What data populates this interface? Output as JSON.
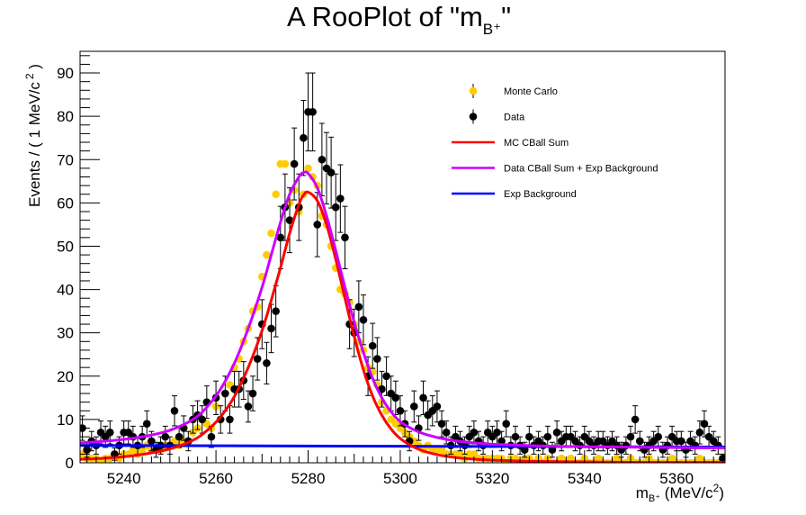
{
  "chart_data": {
    "type": "scatter",
    "title": "A RooPlot of \"m",
    "title_subscript": "B⁺",
    "title_suffix": "\"",
    "xlabel": "m",
    "xlabel_subscript": "B⁺",
    "xlabel_suffix": " (MeV/c",
    "xlabel_sup": "2",
    "xlabel_end": ")",
    "ylabel": "Events / ( 1 MeV/c",
    "ylabel_sup": "2",
    "ylabel_end": " )",
    "xlim": [
      5230.5,
      5370.5
    ],
    "ylim": [
      0,
      95
    ],
    "x_ticks": [
      5240,
      5260,
      5280,
      5300,
      5320,
      5340,
      5360
    ],
    "x_tick_labels": [
      "5240",
      "5260",
      "5280",
      "5300",
      "5320",
      "5340",
      "5360"
    ],
    "y_ticks": [
      0,
      10,
      20,
      30,
      40,
      50,
      60,
      70,
      80,
      90
    ],
    "y_tick_labels": [
      "0",
      "10",
      "20",
      "30",
      "40",
      "50",
      "60",
      "70",
      "80",
      "90"
    ],
    "grid": false,
    "legend_position": "top-right",
    "legend": [
      {
        "label": "Monte Carlo",
        "kind": "marker",
        "color": "#ffcc00"
      },
      {
        "label": "Data",
        "kind": "marker",
        "color": "#000000"
      },
      {
        "label": "MC CBall Sum",
        "kind": "line",
        "color": "#ff0000"
      },
      {
        "label": "Data CBall Sum + Exp Background",
        "kind": "line",
        "color": "#cc00ff"
      },
      {
        "label": "Exp Background",
        "kind": "line",
        "color": "#0000ff"
      }
    ],
    "series": [
      {
        "name": "Monte Carlo",
        "kind": "points",
        "color": "#ffcc00",
        "x": [
          5231,
          5232,
          5233,
          5234,
          5235,
          5236,
          5237,
          5238,
          5239,
          5240,
          5241,
          5242,
          5243,
          5244,
          5245,
          5246,
          5247,
          5248,
          5249,
          5250,
          5251,
          5252,
          5253,
          5254,
          5255,
          5256,
          5257,
          5258,
          5259,
          5260,
          5261,
          5262,
          5263,
          5264,
          5265,
          5266,
          5267,
          5268,
          5269,
          5270,
          5271,
          5272,
          5273,
          5274,
          5275,
          5276,
          5277,
          5278,
          5279,
          5280,
          5281,
          5282,
          5283,
          5284,
          5285,
          5286,
          5287,
          5288,
          5289,
          5290,
          5291,
          5292,
          5293,
          5294,
          5295,
          5296,
          5297,
          5298,
          5299,
          5300,
          5301,
          5302,
          5303,
          5304,
          5305,
          5306,
          5307,
          5308,
          5309,
          5310,
          5311,
          5312,
          5313,
          5314,
          5315,
          5316,
          5317,
          5318,
          5319,
          5320,
          5321,
          5322,
          5323,
          5324,
          5325,
          5326,
          5327,
          5328,
          5329,
          5330,
          5331,
          5332,
          5333,
          5334,
          5335,
          5336,
          5337,
          5338,
          5339,
          5340,
          5341,
          5342,
          5343,
          5344,
          5345,
          5346,
          5347,
          5348,
          5349,
          5350,
          5351,
          5352,
          5353,
          5354,
          5355,
          5356,
          5357,
          5358,
          5359,
          5360,
          5361,
          5362,
          5363,
          5364,
          5365,
          5366,
          5367,
          5368,
          5369,
          5370
        ],
        "y": [
          2,
          1,
          1,
          1,
          0,
          1,
          1,
          2,
          1,
          2,
          2,
          3,
          2,
          3,
          4,
          3,
          3,
          3,
          4,
          4,
          5,
          4,
          5,
          5,
          7,
          8,
          10,
          9,
          8,
          13,
          10,
          16,
          18,
          22,
          24,
          28,
          31,
          35,
          36,
          43,
          48,
          53,
          62,
          69,
          69,
          60,
          63,
          58,
          62,
          68,
          66,
          64,
          57,
          55,
          50,
          45,
          40,
          39,
          37,
          32,
          28,
          26,
          22,
          21,
          18,
          14,
          12,
          10,
          9,
          8,
          7,
          6,
          5,
          4,
          3,
          4,
          3,
          3,
          3,
          2,
          2,
          2,
          2,
          1,
          2,
          2,
          1,
          1,
          1,
          1,
          1,
          1,
          0,
          1,
          1,
          0,
          1,
          1,
          0,
          1,
          0,
          1,
          0,
          0,
          1,
          0,
          1,
          0,
          0,
          1,
          0,
          0,
          1,
          0,
          0,
          0,
          1,
          0,
          0,
          1,
          0,
          0,
          0,
          1,
          0,
          0,
          0,
          0,
          1,
          0,
          0,
          0,
          0,
          0,
          1,
          0,
          0,
          0,
          0,
          0
        ]
      },
      {
        "name": "Data",
        "kind": "points_with_errors",
        "color": "#000000",
        "x": [
          5231,
          5232,
          5233,
          5234,
          5235,
          5236,
          5237,
          5238,
          5239,
          5240,
          5241,
          5242,
          5243,
          5244,
          5245,
          5246,
          5247,
          5248,
          5249,
          5250,
          5251,
          5252,
          5253,
          5254,
          5255,
          5256,
          5257,
          5258,
          5259,
          5260,
          5261,
          5262,
          5263,
          5264,
          5265,
          5266,
          5267,
          5268,
          5269,
          5270,
          5271,
          5272,
          5273,
          5274,
          5275,
          5276,
          5277,
          5278,
          5279,
          5280,
          5281,
          5282,
          5283,
          5284,
          5285,
          5286,
          5287,
          5288,
          5289,
          5290,
          5291,
          5292,
          5293,
          5294,
          5295,
          5296,
          5297,
          5298,
          5299,
          5300,
          5301,
          5302,
          5303,
          5304,
          5305,
          5306,
          5307,
          5308,
          5309,
          5310,
          5311,
          5312,
          5313,
          5314,
          5315,
          5316,
          5317,
          5318,
          5319,
          5320,
          5321,
          5322,
          5323,
          5324,
          5325,
          5326,
          5327,
          5328,
          5329,
          5330,
          5331,
          5332,
          5333,
          5334,
          5335,
          5336,
          5337,
          5338,
          5339,
          5340,
          5341,
          5342,
          5343,
          5344,
          5345,
          5346,
          5347,
          5348,
          5349,
          5350,
          5351,
          5352,
          5353,
          5354,
          5355,
          5356,
          5357,
          5358,
          5359,
          5360,
          5361,
          5362,
          5363,
          5364,
          5365,
          5366,
          5367,
          5368,
          5369,
          5370
        ],
        "y": [
          8,
          3,
          5,
          4,
          7,
          6,
          7,
          2,
          4,
          7,
          7,
          6,
          4,
          6,
          9,
          5,
          3,
          4,
          6,
          4,
          12,
          6,
          8,
          5,
          10,
          11,
          10,
          14,
          6,
          15,
          10,
          16,
          10,
          17,
          17,
          19,
          13,
          16,
          24,
          32,
          23,
          31,
          35,
          52,
          59,
          56,
          69,
          59,
          75,
          81,
          81,
          55,
          70,
          68,
          67,
          59,
          61,
          52,
          32,
          30,
          36,
          33,
          20,
          27,
          24,
          17,
          20,
          16,
          15,
          12,
          9,
          5,
          13,
          8,
          15,
          11,
          12,
          13,
          9,
          7,
          4,
          6,
          5,
          4,
          6,
          7,
          5,
          4,
          7,
          6,
          7,
          5,
          9,
          4,
          6,
          4,
          3,
          6,
          4,
          5,
          4,
          6,
          3,
          7,
          5,
          6,
          6,
          5,
          4,
          6,
          5,
          4,
          5,
          5,
          4,
          5,
          4,
          3,
          4,
          6,
          10,
          5,
          3,
          4,
          5,
          6,
          3,
          4,
          6,
          5,
          5,
          3,
          5,
          4,
          7,
          9,
          6,
          5,
          4,
          1
        ]
      },
      {
        "name": "MC CBall Sum",
        "kind": "curve",
        "color": "#ff0000",
        "x": [
          5230.5,
          5235,
          5240,
          5245,
          5250,
          5255,
          5258,
          5261,
          5264,
          5267,
          5270,
          5272,
          5274,
          5276,
          5278,
          5279,
          5280,
          5282,
          5284,
          5286,
          5288,
          5290,
          5292,
          5294,
          5296,
          5298,
          5300,
          5303,
          5306,
          5310,
          5315,
          5320,
          5330,
          5340,
          5350,
          5360,
          5370.5
        ],
        "y": [
          0.8,
          1.0,
          1.4,
          2.1,
          3.2,
          5.2,
          7.4,
          10.6,
          15.3,
          22,
          30.5,
          37.5,
          45,
          53,
          59.6,
          61.8,
          62.5,
          60.5,
          55,
          47,
          38,
          29.2,
          21.5,
          15.4,
          11,
          7.8,
          5.6,
          3.6,
          2.4,
          1.5,
          0.9,
          0.6,
          0.3,
          0.2,
          0.1,
          0.1,
          0.1
        ]
      },
      {
        "name": "Data CBall Sum + Exp Background",
        "kind": "curve",
        "color": "#cc00ff",
        "x": [
          5230.5,
          5235,
          5240,
          5245,
          5250,
          5255,
          5258,
          5261,
          5264,
          5267,
          5270,
          5272,
          5274,
          5276,
          5278,
          5279,
          5280,
          5282,
          5284,
          5286,
          5288,
          5290,
          5292,
          5294,
          5296,
          5298,
          5300,
          5303,
          5306,
          5310,
          5315,
          5320,
          5330,
          5340,
          5350,
          5360,
          5370.5
        ],
        "y": [
          4.6,
          4.9,
          5.4,
          6.2,
          7.5,
          10,
          12.8,
          17,
          23,
          31,
          40.5,
          48,
          55.5,
          62,
          66,
          67,
          66.8,
          63.5,
          57,
          49,
          40.5,
          32.5,
          25.5,
          19.5,
          15,
          11.8,
          9.5,
          7.6,
          6.4,
          5.4,
          4.7,
          4.3,
          3.9,
          3.7,
          3.6,
          3.5,
          3.4
        ]
      },
      {
        "name": "Exp Background",
        "kind": "curve",
        "color": "#0000ff",
        "x": [
          5230.5,
          5250,
          5270,
          5290,
          5310,
          5330,
          5350,
          5370.5
        ],
        "y": [
          4.0,
          3.95,
          3.9,
          3.85,
          3.8,
          3.75,
          3.7,
          3.65
        ]
      }
    ]
  }
}
